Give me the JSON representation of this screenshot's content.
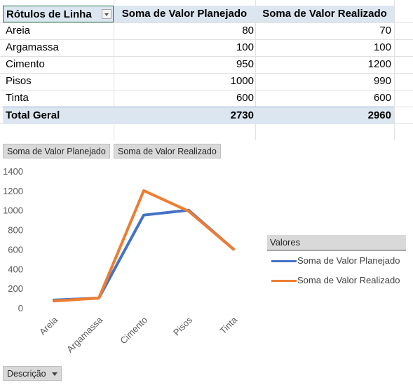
{
  "pivot": {
    "headers": [
      "Rótulos de Linha",
      "Soma de Valor Planejado",
      "Soma de Valor Realizado"
    ],
    "rows": [
      {
        "label": "Areia",
        "planejado": "80",
        "realizado": "70"
      },
      {
        "label": "Argamassa",
        "planejado": "100",
        "realizado": "100"
      },
      {
        "label": "Cimento",
        "planejado": "950",
        "realizado": "1200"
      },
      {
        "label": "Pisos",
        "planejado": "1000",
        "realizado": "990"
      },
      {
        "label": "Tinta",
        "planejado": "600",
        "realizado": "600"
      }
    ],
    "total": {
      "label": "Total Geral",
      "planejado": "2730",
      "realizado": "2960"
    }
  },
  "field_buttons": {
    "values": [
      "Soma de Valor Planejado",
      "Soma de Valor Realizado"
    ],
    "axis": "Descrição"
  },
  "chart_data": {
    "type": "line",
    "categories": [
      "Areia",
      "Argamassa",
      "Cimento",
      "Pisos",
      "Tinta"
    ],
    "series": [
      {
        "name": "Soma de Valor Planejado",
        "values": [
          80,
          100,
          950,
          1000,
          600
        ],
        "color": "#4472c4"
      },
      {
        "name": "Soma de Valor Realizado",
        "values": [
          70,
          100,
          1200,
          990,
          600
        ],
        "color": "#ed7d31"
      }
    ],
    "ylim": [
      0,
      1400
    ],
    "yticks": [
      "0",
      "200",
      "400",
      "600",
      "800",
      "1000",
      "1200",
      "1400"
    ],
    "grid": false,
    "legend": {
      "title": "Valores",
      "placement": "right"
    }
  },
  "colors": {
    "header_fill": "#dce6f1",
    "selected_border": "#217346"
  }
}
